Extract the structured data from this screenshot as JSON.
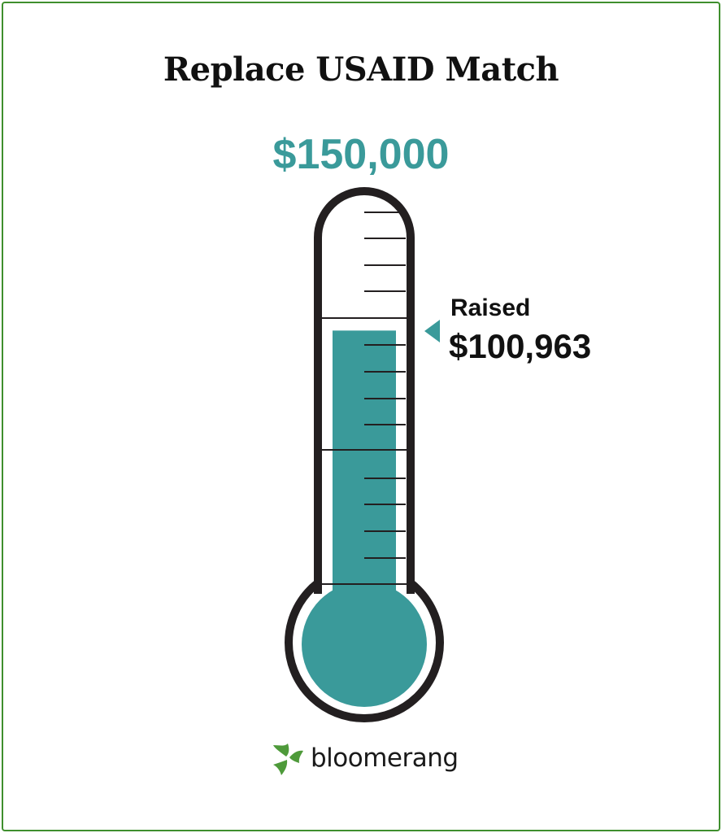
{
  "title": "Replace USAID Match",
  "goal": "$150,000",
  "raised": {
    "label": "Raised",
    "value": "$100,963"
  },
  "progress": {
    "goal_amount": 150000,
    "raised_amount": 100963
  },
  "colors": {
    "accent": "#3a9a9a",
    "frame": "#3f8f2e",
    "outline": "#231f20",
    "logo": "#4e9a3a"
  },
  "logo": {
    "text": "bloomerang",
    "icon": "bloomerang-leaf-icon"
  }
}
